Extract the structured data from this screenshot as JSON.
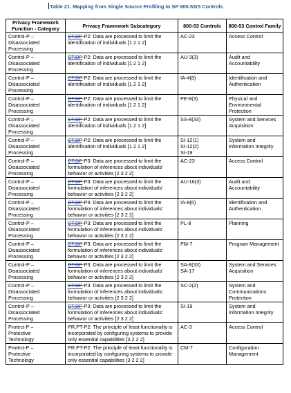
{
  "caption": "Table 21. Mapping from Single Source Profiling to SP 800-53r5 Controls",
  "headers": {
    "function": "Privacy Framework Function - Category",
    "subcategory": "Privacy Framework Subcategory",
    "controls": "800-53 Controls",
    "family": "800-53 Control Family"
  },
  "rows": [
    {
      "function": "Control-P –\nDisassociated\nProcessing",
      "prefix": "CT.DP",
      "sub": "-P2: Data are processed to limit the identification of individuals [1 2 1 2]",
      "controls": "AC-23",
      "family": "Access Control"
    },
    {
      "function": "Control-P –\nDisassociated\nProcessing",
      "prefix": "CT.DP",
      "sub": "-P2: Data are processed to limit the identification of individuals [1 2 1 2]",
      "controls": "AU-3(3)",
      "family": "Audit and Accountability"
    },
    {
      "function": "Control-P –\nDisassociated\nProcessing",
      "prefix": "CT.DP",
      "sub": "-P2: Data are processed to limit the identification of individuals [1 2 1 2]",
      "controls": "IA-4(8)",
      "family": "Identification and Authentication"
    },
    {
      "function": "Control-P –\nDisassociated\nProcessing",
      "prefix": "CT.DP",
      "sub": "-P2: Data are processed to limit the identification of individuals [1 2 1 2]",
      "controls": "PE-8(3)",
      "family": "Physical and Environmental Protection"
    },
    {
      "function": "Control-P –\nDisassociated\nProcessing",
      "prefix": "CT.DP",
      "sub": "-P2: Data are processed to limit the identification of individuals [1 2 1 2]",
      "controls": "SA-8(33)",
      "family": "System and Services Acquisition"
    },
    {
      "function": "Control-P –\nDisassociated\nProcessing",
      "prefix": "CT.DP",
      "sub": "-P2: Data are processed to limit the identification of individuals [1 2 1 2]",
      "controls": "SI-12(1)\nSI-12(2)\nSI-19",
      "family": "System and Information Integrity"
    },
    {
      "function": "Control-P –\nDisassociated\nProcessing",
      "prefix": "CT.DP",
      "sub": "-P3: Data are processed to limit the formulation of inferences about individuals' behavior or activities [2 3 2 2]",
      "controls": "AC-23",
      "family": "Access Control"
    },
    {
      "function": "Control-P –\nDisassociated\nProcessing",
      "prefix": "CT.DP",
      "sub": "-P3: Data are processed to limit the formulation of inferences about individuals' behavior or activities [2 3 2 2]",
      "controls": "AU-16(3)",
      "family": "Audit and Accountability"
    },
    {
      "function": "Control-P –\nDisassociated\nProcessing",
      "prefix": "CT.DP",
      "sub": "-P3: Data are processed to limit the formulation of inferences about individuals' behavior or activities [2 3 2 2]",
      "controls": "IA-8(6)",
      "family": "Identification and Authentication"
    },
    {
      "function": "Control-P –\nDisassociated\nProcessing",
      "prefix": "CT.DP",
      "sub": "-P3: Data are processed to limit the formulation of inferences about individuals' behavior or activities [2 3 2 2]",
      "controls": "PL-8",
      "family": "Planning"
    },
    {
      "function": "Control-P –\nDisassociated\nProcessing",
      "prefix": "CT.DP",
      "sub": "-P3: Data are processed to limit the formulation of inferences about individuals' behavior or activities [2 3 2 2]",
      "controls": "PM-7",
      "family": "Program Management"
    },
    {
      "function": "Control-P –\nDisassociated\nProcessing",
      "prefix": "CT.DP",
      "sub": "-P3: Data are processed to limit the formulation of inferences about individuals' behavior or activities [2 3 2 2]",
      "controls": "SA-8(33)\nSA-17",
      "family": "System and Services Acquisition"
    },
    {
      "function": "Control-P –\nDisassociated\nProcessing",
      "prefix": "CT.DP",
      "sub": "-P3: Data are processed to limit the formulation of inferences about individuals' behavior or activities [2 3 2 2]",
      "controls": "SC-2(2)",
      "family": "System and Communications Protection"
    },
    {
      "function": "Control-P –\nDisassociated\nProcessing",
      "prefix": "CT.DP",
      "sub": "-P3: Data are processed to limit the formulation of inferences about individuals' behavior or activities [2 3 2 2]",
      "controls": "SI-19",
      "family": "System and Information Integrity"
    },
    {
      "function": "Protect-P –\nProtective\nTechnology",
      "prefix": "",
      "sub": "PR.PT-P2: The principle of least functionality is incorporated by configuring systems to provide only essential capabilities [3 2 2 2]",
      "controls": "AC-3",
      "family": "Access Control"
    },
    {
      "function": "Protect-P –\nProtective\nTechnology",
      "prefix": "",
      "sub": "PR.PT-P2: The principle of least functionality is incorporated by configuring systems to provide only essential capabilities [3 2 2 2]",
      "controls": "CM-7",
      "family": "Configuration Management"
    }
  ]
}
